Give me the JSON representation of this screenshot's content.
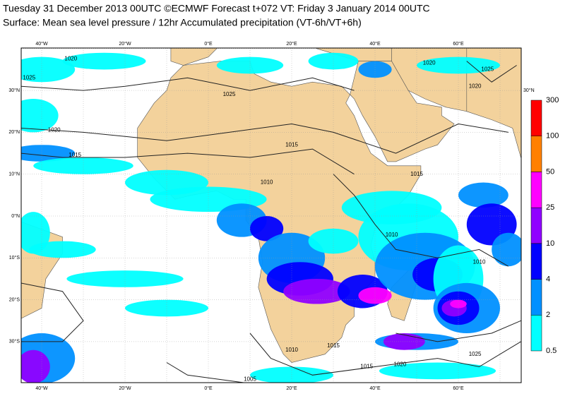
{
  "header": {
    "line1": "Tuesday 31 December 2013 00UTC ©ECMWF Forecast t+072 VT: Friday 3 January 2014 00UTC",
    "line2": "Surface: Mean sea level pressure / 12hr Accumulated precipitation (VT-6h/VT+6h)"
  },
  "longitudes": [
    "40°W",
    "20°W",
    "0°E",
    "20°E",
    "40°E",
    "60°E"
  ],
  "latitudes": [
    "30°N",
    "20°N",
    "10°N",
    "0°N",
    "10°S",
    "20°S",
    "30°S"
  ],
  "colorbar": {
    "levels": [
      "0.5",
      "2",
      "4",
      "10",
      "25",
      "50",
      "100",
      "300"
    ],
    "colors": [
      "#00ffff",
      "#0090ff",
      "#0000ff",
      "#9000ff",
      "#ff00ff",
      "#ff8000",
      "#ff0000"
    ]
  },
  "isobar_labels": [
    "1020",
    "1025",
    "1025",
    "1020",
    "1020",
    "1015",
    "1015",
    "1010",
    "1010",
    "1015",
    "1010",
    "1015",
    "1005",
    "1010",
    "1015",
    "1020",
    "1025",
    "1025",
    "1020"
  ]
}
